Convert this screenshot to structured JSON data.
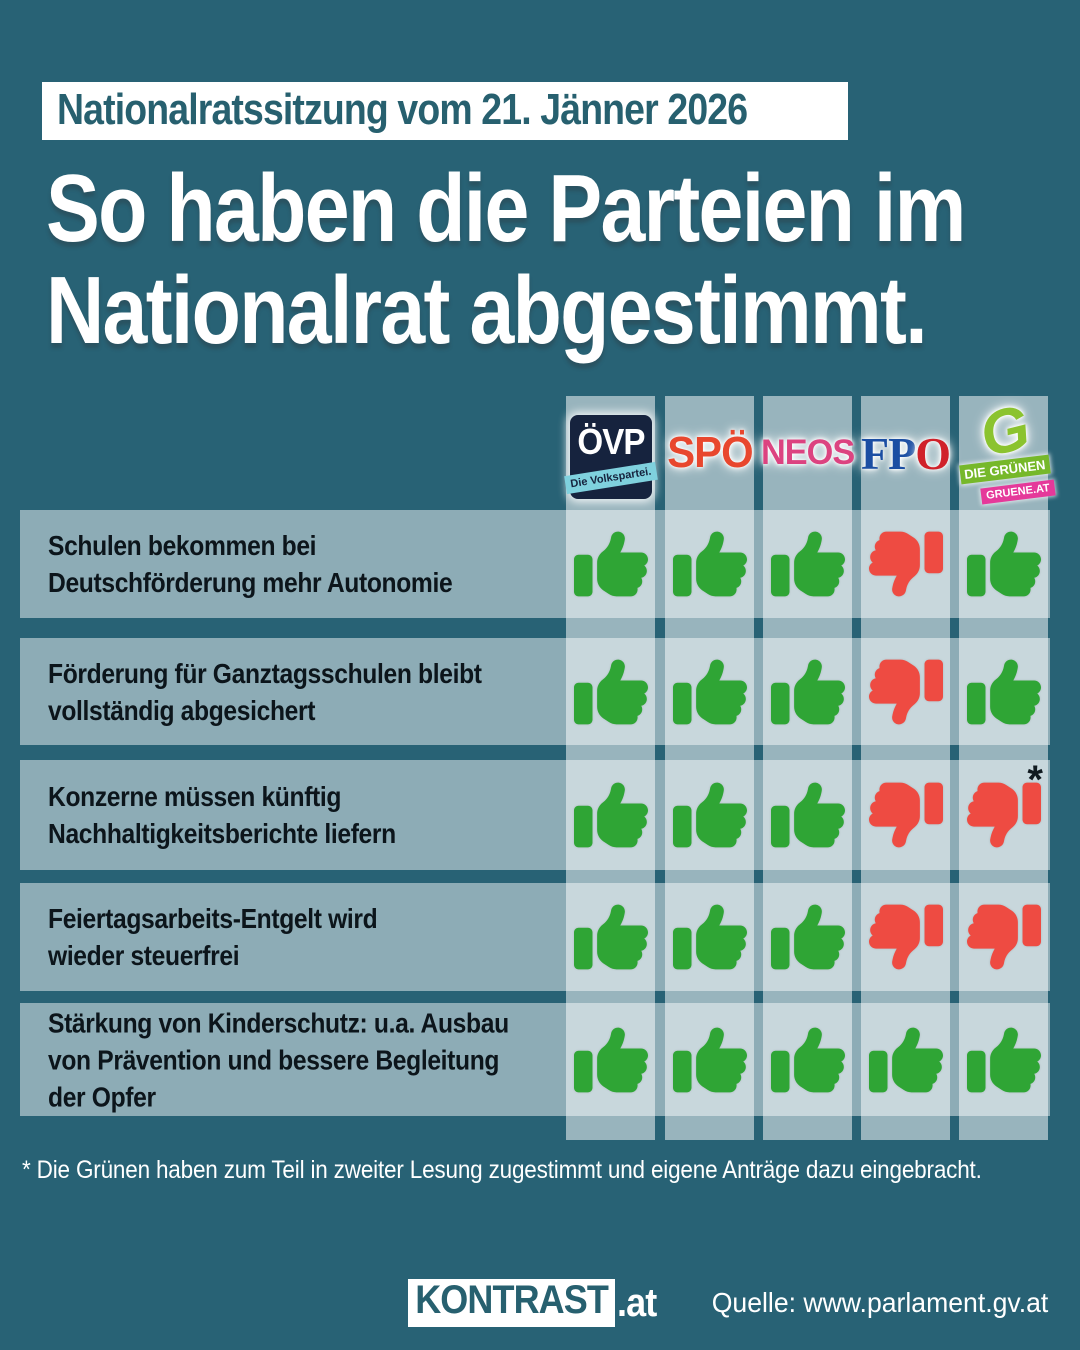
{
  "header": {
    "badge": "Nationalratssitzung vom 21. Jänner 2026",
    "title_line1": "So haben die Parteien im",
    "title_line2": "Nationalrat abgestimmt."
  },
  "logos": {
    "ovp": {
      "text": "ÖVP",
      "subtext": "Die Volkspartei."
    },
    "spo": {
      "text": "SPÖ"
    },
    "neos": {
      "text": "NEOS"
    },
    "fpo": {
      "text_blue": "FP",
      "text_red": "O"
    },
    "gruene": {
      "glyph": "G",
      "banner_top": "DIE GRÜNEN",
      "banner_bottom": "GRUENE.AT"
    }
  },
  "chart_data": {
    "type": "table",
    "title": "So haben die Parteien im Nationalrat abgestimmt.",
    "subtitle": "Nationalratssitzung vom 21. Jänner 2026",
    "columns": [
      "ÖVP",
      "SPÖ",
      "NEOS",
      "FPÖ",
      "DIE GRÜNEN"
    ],
    "rows": [
      {
        "topic_lines": [
          "Schulen bekommen bei",
          "Deutschförderung mehr Autonomie"
        ],
        "votes": [
          "up",
          "up",
          "up",
          "down",
          "up"
        ],
        "asterisk_col": null
      },
      {
        "topic_lines": [
          "Förderung für Ganztagsschulen bleibt",
          "vollständig abgesichert"
        ],
        "votes": [
          "up",
          "up",
          "up",
          "down",
          "up"
        ],
        "asterisk_col": null
      },
      {
        "topic_lines": [
          "Konzerne müssen künftig",
          "Nachhaltigkeitsberichte liefern"
        ],
        "votes": [
          "up",
          "up",
          "up",
          "down",
          "down"
        ],
        "asterisk_col": 4
      },
      {
        "topic_lines": [
          "Feiertagsarbeits-Entgelt wird",
          "wieder steuerfrei"
        ],
        "votes": [
          "up",
          "up",
          "up",
          "down",
          "down"
        ],
        "asterisk_col": null
      },
      {
        "topic_lines": [
          "Stärkung von Kinderschutz: u.a. Ausbau",
          "von Prävention und bessere Begleitung",
          "der Opfer"
        ],
        "votes": [
          "up",
          "up",
          "up",
          "up",
          "up"
        ],
        "asterisk_col": null
      }
    ],
    "footnote": "* Die Grünen haben zum Teil in zweiter Lesung zugestimmt und eigene Anträge dazu eingebracht.",
    "source": "Quelle: www.parlament.gv.at"
  },
  "vote_colors": {
    "up": "#2fa535",
    "down": "#ee4b42"
  },
  "asterisk_symbol": "*",
  "footer": {
    "logo_main": "KONTRAST",
    "logo_suffix": ".at",
    "source": "Quelle: www.parlament.gv.at"
  }
}
